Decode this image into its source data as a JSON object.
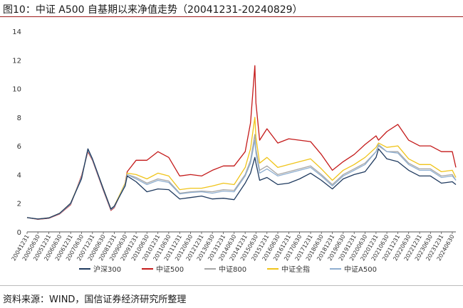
{
  "header": {
    "title": "图10：中证 A500 自基期以来净值走势（20041231-20240829）"
  },
  "footer": {
    "source": "资料来源：WIND，国信证券经济研究所整理"
  },
  "chart_data": {
    "type": "line",
    "title": "",
    "xlabel": "",
    "ylabel": "",
    "ylim": [
      0,
      14
    ],
    "yticks": [
      0,
      2,
      4,
      6,
      8,
      10,
      12,
      14
    ],
    "grid": false,
    "legend_position": "bottom",
    "x_tick_labels": [
      "20041231",
      "20050630",
      "20051231",
      "20060630",
      "20061231",
      "20070630",
      "20071231",
      "20080630",
      "20081231",
      "20090630",
      "20091231",
      "20100630",
      "20101231",
      "20110630",
      "20111231",
      "20120630",
      "20121231",
      "20130630",
      "20131231",
      "20140630",
      "20141231",
      "20150630",
      "20151231",
      "20160630",
      "20161231",
      "20170630",
      "20171231",
      "20180630",
      "20181231",
      "20190630",
      "20191231",
      "20200630",
      "20201231",
      "20210630",
      "20211231",
      "20220630",
      "20221231",
      "20230630",
      "20231231",
      "20240630"
    ],
    "x": [
      "20041231",
      "20050630",
      "20051231",
      "20060630",
      "20061231",
      "20070630",
      "20071016",
      "20071231",
      "20080630",
      "20081104",
      "20081231",
      "20090630",
      "20090804",
      "20091231",
      "20100630",
      "20101231",
      "20110630",
      "20111231",
      "20120630",
      "20121231",
      "20130630",
      "20131231",
      "20140630",
      "20141231",
      "20150331",
      "20150612",
      "20150630",
      "20150831",
      "20151231",
      "20160630",
      "20161231",
      "20170630",
      "20171231",
      "20180630",
      "20181231",
      "20190630",
      "20191231",
      "20200630",
      "20201231",
      "20210210",
      "20210630",
      "20211231",
      "20220630",
      "20221231",
      "20230630",
      "20231231",
      "20240630",
      "20240829"
    ],
    "series": [
      {
        "name": "沪深300",
        "color": "#1f3a5f",
        "values": [
          1.0,
          0.9,
          0.98,
          1.3,
          2.0,
          3.7,
          5.8,
          5.1,
          3.0,
          1.6,
          1.8,
          3.2,
          3.9,
          3.5,
          2.8,
          3.0,
          2.95,
          2.3,
          2.4,
          2.5,
          2.3,
          2.35,
          2.25,
          3.4,
          4.1,
          5.2,
          4.8,
          3.6,
          3.8,
          3.3,
          3.4,
          3.7,
          4.1,
          3.6,
          3.0,
          3.7,
          4.0,
          4.2,
          5.2,
          5.8,
          5.1,
          4.9,
          4.3,
          3.9,
          3.9,
          3.4,
          3.5,
          3.3
        ]
      },
      {
        "name": "中证500",
        "color": "#c41a1a",
        "values": [
          1.0,
          0.88,
          0.95,
          1.25,
          1.9,
          3.9,
          5.6,
          5.0,
          2.9,
          1.5,
          1.7,
          3.4,
          4.2,
          5.0,
          5.0,
          5.6,
          5.2,
          3.9,
          4.0,
          3.9,
          4.3,
          4.6,
          4.6,
          5.6,
          7.6,
          11.6,
          9.0,
          6.4,
          7.2,
          6.2,
          6.5,
          6.4,
          6.3,
          5.4,
          4.3,
          4.9,
          5.4,
          6.1,
          6.7,
          6.4,
          7.0,
          7.5,
          6.4,
          6.0,
          6.0,
          5.6,
          5.6,
          4.5
        ]
      },
      {
        "name": "中证800",
        "color": "#a6a6a6",
        "values": [
          1.0,
          0.89,
          0.97,
          1.28,
          1.95,
          3.8,
          5.7,
          5.05,
          2.95,
          1.55,
          1.75,
          3.3,
          4.0,
          3.8,
          3.4,
          3.7,
          3.55,
          2.7,
          2.8,
          2.85,
          2.8,
          2.95,
          2.9,
          4.0,
          5.0,
          6.8,
          5.8,
          4.3,
          4.6,
          4.0,
          4.2,
          4.4,
          4.6,
          4.0,
          3.3,
          4.0,
          4.4,
          4.8,
          5.6,
          6.0,
          5.6,
          5.6,
          4.8,
          4.4,
          4.4,
          3.9,
          4.0,
          3.6
        ]
      },
      {
        "name": "中证全指",
        "color": "#f0c419",
        "values": [
          1.0,
          0.9,
          0.98,
          1.3,
          2.0,
          3.8,
          5.7,
          5.05,
          3.0,
          1.6,
          1.8,
          3.4,
          4.1,
          4.0,
          3.7,
          4.1,
          3.9,
          2.95,
          3.05,
          3.05,
          3.2,
          3.4,
          3.3,
          4.5,
          5.8,
          8.0,
          6.6,
          4.8,
          5.2,
          4.5,
          4.7,
          4.9,
          5.1,
          4.4,
          3.6,
          4.3,
          4.7,
          5.2,
          5.9,
          6.2,
          5.9,
          6.0,
          5.1,
          4.7,
          4.7,
          4.2,
          4.3,
          3.8
        ]
      },
      {
        "name": "中证A500",
        "color": "#8eaed0",
        "values": [
          1.0,
          0.9,
          0.97,
          1.28,
          1.95,
          3.8,
          5.7,
          5.05,
          2.95,
          1.55,
          1.75,
          3.3,
          4.0,
          3.7,
          3.3,
          3.6,
          3.45,
          2.65,
          2.75,
          2.8,
          2.7,
          2.85,
          2.8,
          3.9,
          4.8,
          6.4,
          5.5,
          4.1,
          4.4,
          3.9,
          4.1,
          4.3,
          4.5,
          3.9,
          3.2,
          3.9,
          4.3,
          4.7,
          5.6,
          6.1,
          5.6,
          5.5,
          4.7,
          4.3,
          4.3,
          3.8,
          3.9,
          3.6
        ]
      }
    ]
  }
}
